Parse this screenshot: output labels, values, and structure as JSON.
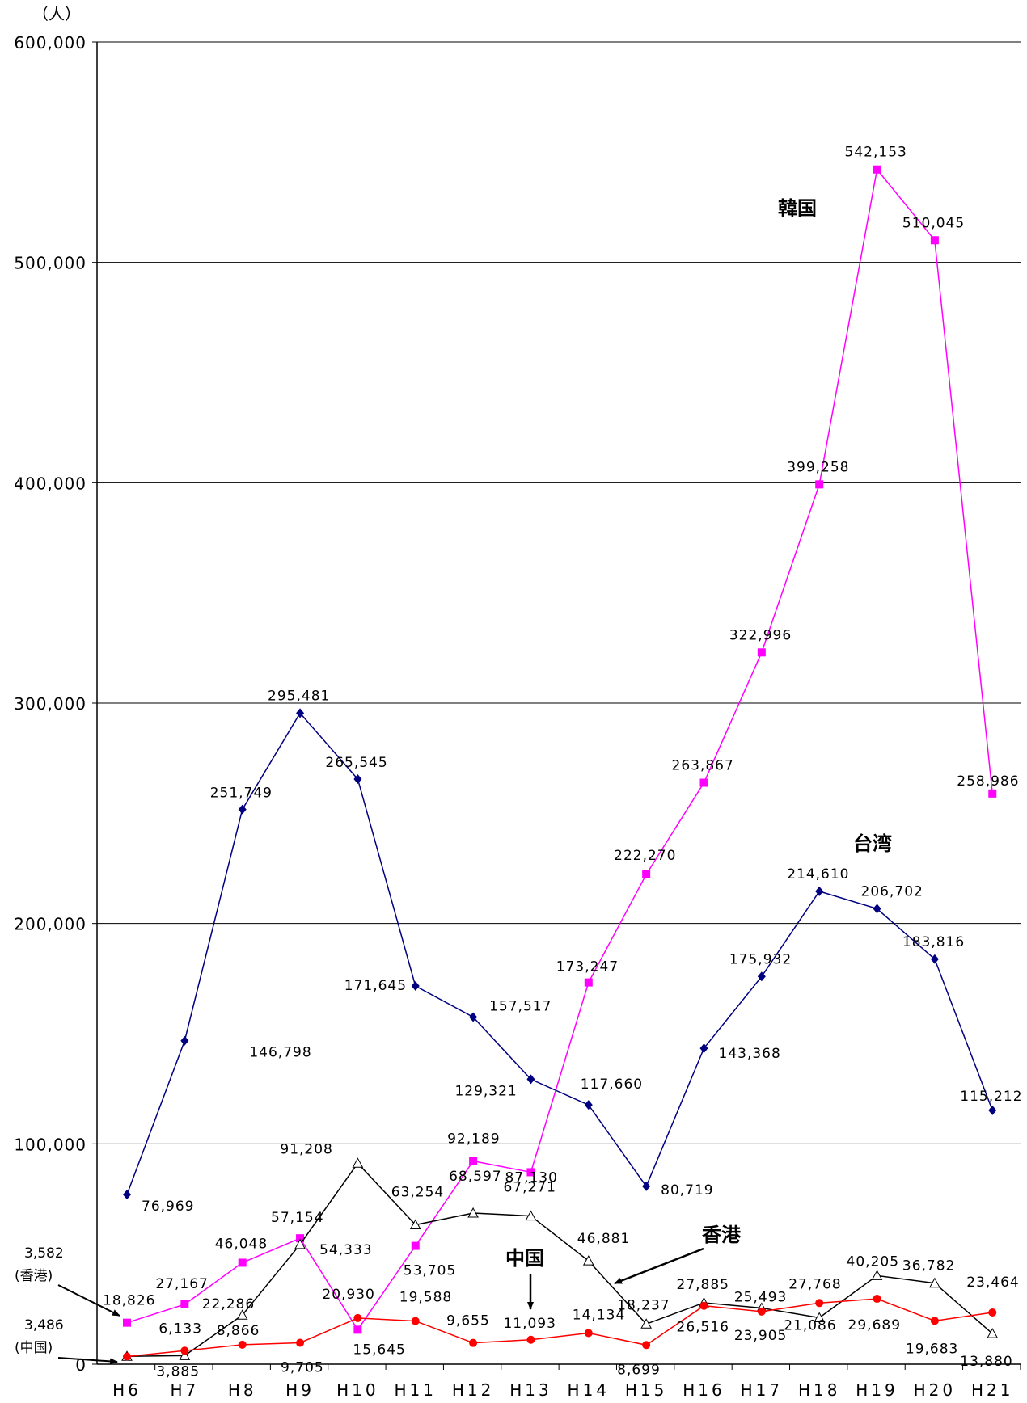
{
  "chart_data": {
    "type": "line",
    "unit_label": "（人）",
    "categories": [
      "H6",
      "H7",
      "H8",
      "H9",
      "H10",
      "H11",
      "H12",
      "H13",
      "H14",
      "H15",
      "H16",
      "H17",
      "H18",
      "H19",
      "H20",
      "H21"
    ],
    "ylim": [
      0,
      600000
    ],
    "yticks": [
      0,
      100000,
      200000,
      300000,
      400000,
      500000,
      600000
    ],
    "ytick_labels": [
      "0",
      "100,000",
      "200,000",
      "300,000",
      "400,000",
      "500,000",
      "600,000"
    ],
    "grid": true,
    "series": [
      {
        "name": "台湾",
        "color": "#000080",
        "marker": "diamond",
        "values": [
          76969,
          146798,
          251749,
          295481,
          265545,
          171645,
          157517,
          129321,
          117660,
          80719,
          143368,
          175932,
          214610,
          206702,
          183816,
          115212
        ],
        "labels": [
          "76,969",
          "146,798",
          "251,749",
          "295,481",
          "265,545",
          "171,645",
          "157,517",
          "129,321",
          "117,660",
          "80,719",
          "143,368",
          "175,932",
          "214,610",
          "206,702",
          "183,816",
          "115,212"
        ]
      },
      {
        "name": "韓国",
        "color": "#ff00ff",
        "marker": "square",
        "values": [
          18826,
          27167,
          46048,
          57154,
          15645,
          53705,
          92189,
          87130,
          173247,
          222270,
          263867,
          322996,
          399258,
          542153,
          510045,
          258986
        ],
        "labels": [
          "18,826",
          "27,167",
          "46,048",
          "57,154",
          "15,645",
          "53,705",
          "92,189",
          "87,130",
          "173,247",
          "222,270",
          "263,867",
          "322,996",
          "399,258",
          "542,153",
          "510,045",
          "258,986"
        ]
      },
      {
        "name": "香港",
        "color": "#000000",
        "marker": "triangle",
        "values": [
          3582,
          3885,
          22286,
          54333,
          91208,
          63254,
          68597,
          67271,
          46881,
          18237,
          27885,
          25493,
          21086,
          40205,
          36782,
          13880
        ],
        "labels": [
          "3,582",
          "3,885",
          "22,286",
          "54,333",
          "91,208",
          "63,254",
          "68,597",
          "67,271",
          "46,881",
          "18,237",
          "27,885",
          "25,493",
          "21,086",
          "40,205",
          "36,782",
          "13,880"
        ]
      },
      {
        "name": "中国",
        "color": "#ff0000",
        "marker": "circle",
        "values": [
          3486,
          6133,
          8866,
          9705,
          20930,
          19588,
          9655,
          11093,
          14134,
          8699,
          26516,
          23905,
          27768,
          29689,
          19683,
          23464
        ],
        "labels": [
          "3,486",
          "6,133",
          "8,866",
          "9,705",
          "20,930",
          "19,588",
          "9,655",
          "11,093",
          "14,134",
          "8,699",
          "26,516",
          "23,905",
          "27,768",
          "29,689",
          "19,683",
          "23,464"
        ]
      }
    ],
    "annotations": {
      "hk_start": {
        "value": "3,582",
        "note": "(香港)"
      },
      "cn_start": {
        "value": "3,486",
        "note": "(中国)"
      }
    }
  }
}
